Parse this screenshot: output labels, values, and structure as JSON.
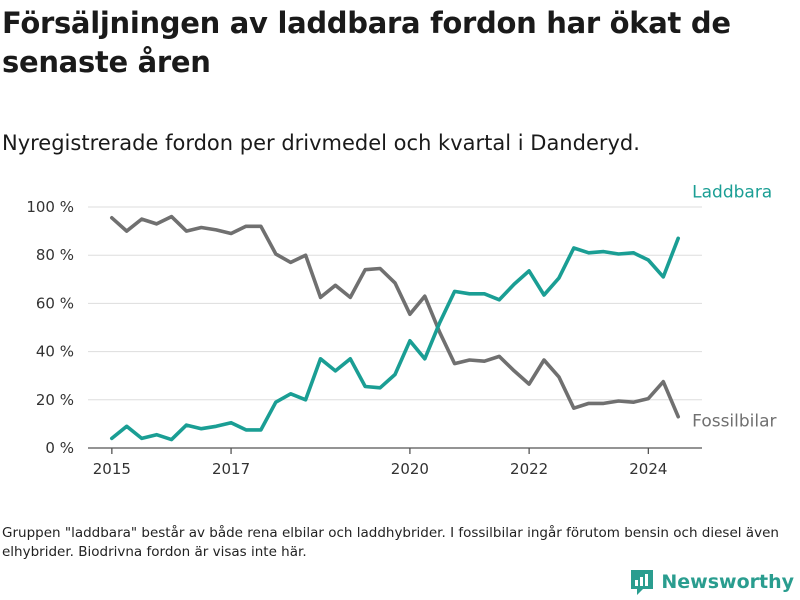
{
  "header": {
    "title": "Försäljningen av laddbara fordon har ökat de senaste åren",
    "subtitle": "Nyregistrerade fordon per drivmedel och kvartal i Danderyd."
  },
  "footnote": "Gruppen \"laddbara\" består av både rena elbilar och laddhybrider. I fossilbilar ingår förutom bensin och diesel även elhybrider. Biodrivna fordon är visas inte här.",
  "brand": {
    "name": "Newsworthy",
    "icon": "newsworthy-logo-icon"
  },
  "colors": {
    "laddbara": "#1a9e94",
    "fossil": "#707070",
    "grid": "#dddddd",
    "axis": "#555555",
    "brand": "#2a9d8f"
  },
  "chart_data": {
    "type": "line",
    "title": "Försäljningen av laddbara fordon har ökat de senaste åren",
    "subtitle": "Nyregistrerade fordon per drivmedel och kvartal i Danderyd.",
    "xlabel": "",
    "ylabel": "",
    "x": [
      2015.0,
      2015.25,
      2015.5,
      2015.75,
      2016.0,
      2016.25,
      2016.5,
      2016.75,
      2017.0,
      2017.25,
      2017.5,
      2017.75,
      2018.0,
      2018.25,
      2018.5,
      2018.75,
      2019.0,
      2019.25,
      2019.5,
      2019.75,
      2020.0,
      2020.25,
      2020.5,
      2020.75,
      2021.0,
      2021.25,
      2021.5,
      2021.75,
      2022.0,
      2022.25,
      2022.5,
      2022.75,
      2023.0,
      2023.25,
      2023.5,
      2023.75,
      2024.0,
      2024.25,
      2024.5
    ],
    "xlim": [
      2014.6,
      2024.9
    ],
    "ylim": [
      0,
      100
    ],
    "x_ticks": [
      2015,
      2017,
      2020,
      2022,
      2024
    ],
    "x_tick_labels": [
      "2015",
      "2017",
      "2020",
      "2022",
      "2024"
    ],
    "y_ticks": [
      0,
      20,
      40,
      60,
      80,
      100
    ],
    "y_tick_labels": [
      "0 %",
      "20 %",
      "40 %",
      "60 %",
      "80 %",
      "100 %"
    ],
    "grid": true,
    "series": [
      {
        "name": "Laddbara",
        "label": "Laddbara",
        "color": "#1a9e94",
        "values": [
          4,
          9,
          4,
          5.5,
          3.5,
          9.5,
          8,
          9,
          10.5,
          7.5,
          7.5,
          19,
          22.5,
          20,
          37,
          32,
          37,
          25.5,
          25,
          30.5,
          44.5,
          37,
          52,
          65,
          64,
          64,
          61.5,
          68,
          73.5,
          63.5,
          70.5,
          83,
          81,
          81.5,
          80.5,
          81,
          78,
          71,
          87
        ]
      },
      {
        "name": "Fossilbilar",
        "label": "Fossilbilar",
        "color": "#707070",
        "values": [
          95.5,
          90,
          95,
          93,
          96,
          90,
          91.5,
          90.5,
          89,
          92,
          92,
          80.5,
          77,
          80,
          62.5,
          67.5,
          62.5,
          74,
          74.5,
          68.5,
          55.5,
          63,
          48,
          35,
          36.5,
          36,
          38,
          32,
          26.5,
          36.5,
          29.5,
          16.5,
          18.5,
          18.5,
          19.5,
          19,
          20.5,
          27.5,
          13
        ]
      }
    ]
  }
}
